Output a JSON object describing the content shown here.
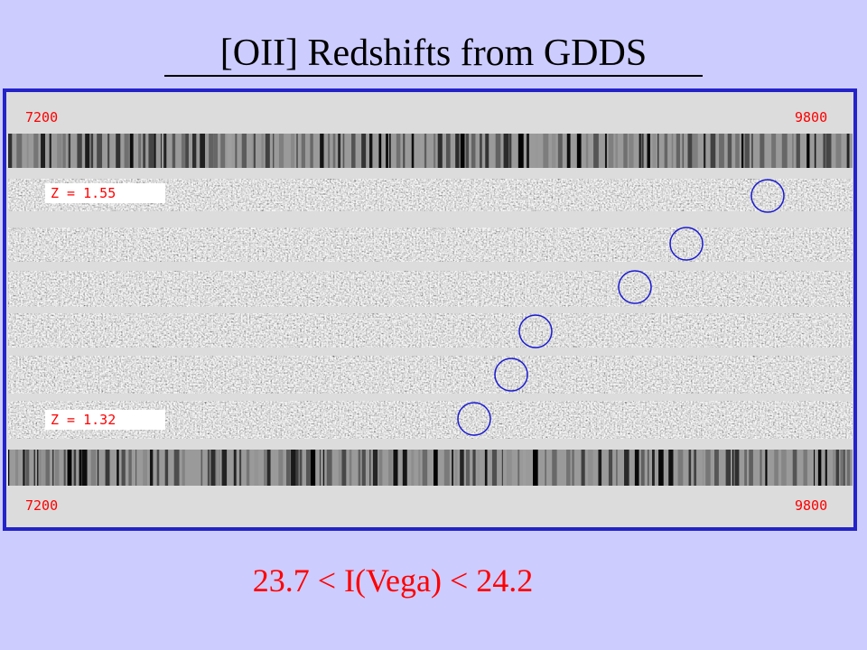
{
  "title": "[OII] Redshifts from GDDS",
  "image": {
    "top_left_label": "7200",
    "top_right_label": "9800",
    "bottom_left_label": "7200",
    "bottom_right_label": "9800",
    "redshift_labels": [
      "Z = 1.55",
      "Z = 1.32"
    ]
  },
  "caption": "23.7 < I(Vega) < 24.2"
}
